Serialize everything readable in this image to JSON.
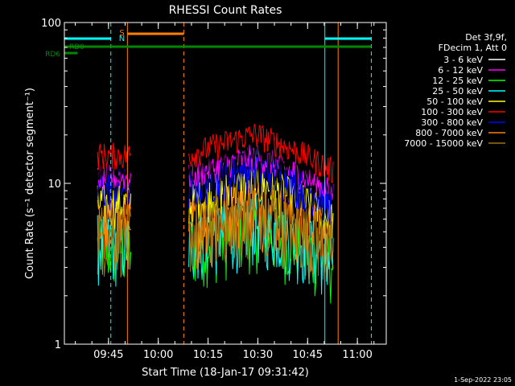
{
  "chart_data": {
    "type": "line",
    "title": "RHESSI Count Rates",
    "xlabel": "Start Time (18-Jan-17 09:31:42)",
    "ylabel": "Count Rate (s⁻¹ detector segment⁻¹)",
    "yscale": "log",
    "ylim": [
      1,
      100
    ],
    "xlim_minutes": [
      0,
      97
    ],
    "x_ticks": [
      {
        "label": "09:45",
        "t": 13.3
      },
      {
        "label": "10:00",
        "t": 28.3
      },
      {
        "label": "10:15",
        "t": 43.3
      },
      {
        "label": "10:30",
        "t": 58.3
      },
      {
        "label": "10:45",
        "t": 73.3
      },
      {
        "label": "11:00",
        "t": 88.3
      }
    ],
    "y_ticks": [
      {
        "label": "1",
        "v": 1
      },
      {
        "label": "10",
        "v": 10
      },
      {
        "label": "100",
        "v": 100
      }
    ],
    "legend_header": [
      "Det 3f,9f,",
      "FDecim 1, Att 0"
    ],
    "series": [
      {
        "name": "3 - 6 keV",
        "color": "#000000",
        "level": 12.5
      },
      {
        "name": "6 - 12 keV",
        "color": "#ff00ff",
        "level": 11.0
      },
      {
        "name": "12 - 25 keV",
        "color": "#00ff00",
        "level": 4.0
      },
      {
        "name": "25 - 50 keV",
        "color": "#00ffff",
        "level": 4.3
      },
      {
        "name": "50 - 100 keV",
        "color": "#ffff00",
        "level": 7.5
      },
      {
        "name": "100 - 300 keV",
        "color": "#ff0000",
        "level": 15.0
      },
      {
        "name": "300 - 800 keV",
        "color": "#0000ff",
        "level": 9.5
      },
      {
        "name": "800 - 7000 keV",
        "color": "#ff8000",
        "level": 5.5
      },
      {
        "name": "7000 - 15000 keV",
        "color": "#a07010",
        "level": 5.0
      }
    ],
    "data_segments_minutes": [
      [
        10,
        20
      ],
      [
        37.5,
        81
      ]
    ],
    "vertical_markers": [
      {
        "t": 0,
        "color": "#00ffff",
        "style": "solid"
      },
      {
        "t": 14,
        "color": "#00ffff",
        "style": "dashed"
      },
      {
        "t": 19,
        "color": "#ff8000",
        "style": "solid"
      },
      {
        "t": 36,
        "color": "#ff8000",
        "style": "dashed"
      },
      {
        "t": 78.5,
        "color": "#00ffff",
        "style": "solid"
      },
      {
        "t": 82.5,
        "color": "#ff8000",
        "style": "solid"
      },
      {
        "t": 92.5,
        "color": "#00ffff",
        "style": "dashed"
      }
    ],
    "flag_bars": [
      {
        "label": "S",
        "color": "#ff8000",
        "t0": 19,
        "t1": 36
      },
      {
        "label": "N",
        "color": "#00ffff",
        "t0": 0,
        "t1": 14
      },
      {
        "label": "",
        "color": "#00ffff",
        "t0": 78.5,
        "t1": 92.5
      },
      {
        "label": "RD0",
        "color": "#008800",
        "t0": 0,
        "t1": 92.5
      },
      {
        "label": "RD6",
        "color": "#008800",
        "t0": 0,
        "t1": 4
      }
    ]
  },
  "footer": {
    "date": "1-Sep-2022 23:05"
  }
}
